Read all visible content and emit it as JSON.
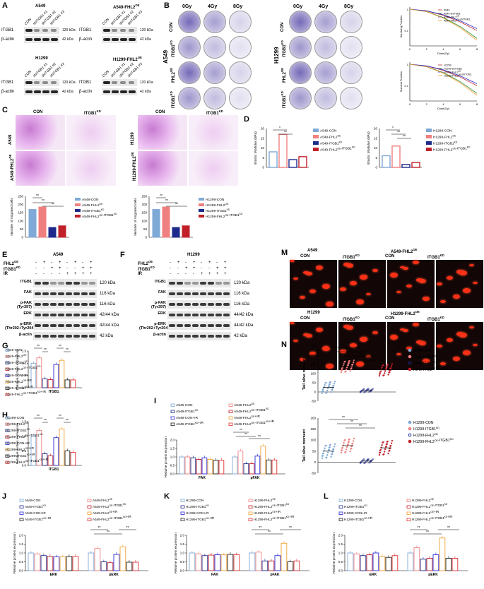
{
  "panels": {
    "A": "A",
    "B": "B",
    "C": "C",
    "D": "D",
    "E": "E",
    "F": "F",
    "G": "G",
    "H": "H",
    "I": "I",
    "J": "J",
    "K": "K",
    "L": "L",
    "M": "M",
    "N": "N"
  },
  "blotsA": [
    {
      "title": "A549",
      "lanes": [
        "CON",
        "shITGB1 #1",
        "shITGB1 #2",
        "shITGB1 #3"
      ],
      "rows": [
        {
          "name": "ITGB1",
          "kda": "120 kDa"
        },
        {
          "name": "β-actin",
          "kda": "42 kDa"
        }
      ]
    },
    {
      "title": "A549-FHL2^OE",
      "lanes": [
        "CON",
        "shITGB1 #1",
        "shITGB1 #2",
        "shITGB1 #3"
      ],
      "rows": [
        {
          "name": "ITGB1",
          "kda": "120 kDa"
        },
        {
          "name": "β-actin",
          "kda": "42 kDa"
        }
      ]
    },
    {
      "title": "H1299",
      "lanes": [
        "CON",
        "shITGB1 #1",
        "shITGB1 #2",
        "shITGB1 #3"
      ],
      "rows": [
        {
          "name": "ITGB1",
          "kda": "120 kDa"
        },
        {
          "name": "β-actin",
          "kda": "42 kDa"
        }
      ]
    },
    {
      "title": "H1299-FHL2^OE",
      "lanes": [
        "CON",
        "shITGB1 #1",
        "shITGB1 #2",
        "shITGB1 #3"
      ],
      "rows": [
        {
          "name": "ITGB1",
          "kda": "120 kDa"
        },
        {
          "name": "β-actin",
          "kda": "42 kDa"
        }
      ]
    }
  ],
  "dishesB": {
    "doses": [
      "0Gy",
      "4Gy",
      "8Gy"
    ],
    "rows": [
      "CON",
      "ITGB1^KD",
      "FHL2^OE",
      "ITGB1^KD"
    ],
    "cellA": "A549",
    "cellH": "H1299"
  },
  "survivalA": {
    "legend": [
      "A549",
      "A549-shITGB1",
      "A549-FHL2^OE",
      "A549-FHL2^OE-shITGB1"
    ],
    "ylabel": "Surviving Fraction",
    "xlabel": "Dose(Gy)",
    "xticks": [
      "0",
      "2",
      "4",
      "6",
      "8"
    ],
    "yticks": [
      "1",
      "0.1"
    ]
  },
  "survivalH": {
    "legend": [
      "H1299",
      "H1299-shITGB1",
      "H1299-FHL2^OE",
      "H1299-FHL2^OE-shITGB1"
    ],
    "ylabel": "Survival Fraction",
    "xlabel": "Dose(Gy)",
    "xticks": [
      "0",
      "2",
      "4",
      "6",
      "8"
    ],
    "yticks": [
      "1",
      "0.1"
    ]
  },
  "micrographsC": {
    "colA": [
      "CON",
      "ITGB1^KD"
    ],
    "rowsA": [
      "A549",
      "A549-FHL2^OE"
    ],
    "colH": [
      "CON",
      "ITGB1^KD"
    ],
    "rowsH": [
      "H1299",
      "H1299-FHL2^OE"
    ]
  },
  "migrationA": {
    "ylabel": "Number of migrated cells",
    "yticks": [
      "0",
      "50",
      "100",
      "150",
      "200",
      "250"
    ],
    "legend": [
      "A549-CON",
      "A549-FHL2^OE",
      "A549-ITGB1^KD",
      "A549-FHL2^OE-ITGB1^KD"
    ],
    "sig": [
      "**",
      "**",
      "**"
    ]
  },
  "migrationH": {
    "ylabel": "Number of migrated cells",
    "yticks": [
      "0",
      "50",
      "100",
      "150",
      "200",
      "250"
    ],
    "legend": [
      "H1299-CON",
      "H1299-FHL2^OE",
      "H1299-ITGB1^KD",
      "H1299-FHL2^OE-ITGB1^KD"
    ],
    "sig": [
      "**",
      "**",
      "**"
    ]
  },
  "elasticA": {
    "ylabel": "Elastic Modulus (kPa)",
    "yticks": [
      "0",
      "5",
      "10",
      "15",
      "20"
    ],
    "legend": [
      "A549-CON",
      "A549-FHL2^OE",
      "A549-ITGB1^KD",
      "A549-FHL2^OE-ITGB1^KD"
    ],
    "sig": [
      "*",
      "**"
    ]
  },
  "elasticH": {
    "ylabel": "Elastic Modulus (kPa)",
    "yticks": [
      "0",
      "5",
      "10",
      "15",
      "20"
    ],
    "legend": [
      "H1299-CON",
      "H1299-FHL2^OE",
      "H1299-ITGB1^KD",
      "H1299-FHL2^OE-ITGB1^KD"
    ],
    "sig": [
      "*",
      "**",
      "**"
    ]
  },
  "blotE": {
    "title": "A549",
    "conds": [
      "FHL2^OE",
      "ITGB1^KD",
      "IR"
    ],
    "signs": [
      [
        "-",
        "+",
        "-",
        "+",
        "-",
        "+",
        "-",
        "+"
      ],
      [
        "-",
        "-",
        "+",
        "+",
        "-",
        "-",
        "+",
        "+"
      ],
      [
        "-",
        "-",
        "-",
        "-",
        "+",
        "+",
        "+",
        "+"
      ]
    ],
    "rows": [
      {
        "name": "ITGB1",
        "kda": "120 kDa"
      },
      {
        "name": "FAK",
        "kda": "116 kDa"
      },
      {
        "name": "p-FAK (Tyr397)",
        "kda": "116 kDa"
      },
      {
        "name": "ERK",
        "kda": "42/44 kDa"
      },
      {
        "name": "p-ERK (Thr202+Tyr204)",
        "kda": "42/44 kDa"
      },
      {
        "name": "β-actin",
        "kda": "42 kDa"
      }
    ]
  },
  "blotF": {
    "title": "H1299",
    "conds": [
      "FHL2^OE",
      "ITGB1^KD",
      "IR"
    ],
    "signs": [
      [
        "-",
        "+",
        "-",
        "+",
        "-",
        "+",
        "-",
        "+"
      ],
      [
        "-",
        "-",
        "+",
        "+",
        "-",
        "-",
        "+",
        "+"
      ],
      [
        "-",
        "-",
        "-",
        "-",
        "+",
        "+",
        "+",
        "+"
      ]
    ],
    "rows": [
      {
        "name": "ITGB1",
        "kda": "120 kDa"
      },
      {
        "name": "FAK",
        "kda": "116 kDa"
      },
      {
        "name": "p-FAK (Tyr397)",
        "kda": "116 kDa"
      },
      {
        "name": "ERK",
        "kda": "44/42 kDa"
      },
      {
        "name": "p-ERK (Thr202+Tyr204)",
        "kda": "44/42 kDa"
      },
      {
        "name": "β-actin",
        "kda": "42 kDa"
      }
    ]
  },
  "legendA8": [
    "A549-CON",
    "A549-FHL2^OE",
    "A549-ITGB1^KD",
    "A549-FHL2^OE-ITGB1^KD",
    "A549-CON+IR",
    "A549-FHL2^OE+IR",
    "A549-ITGB1^KD+IR",
    "A549-FHL2^OE-ITGB1^KD+IR"
  ],
  "legendH8": [
    "H1299-CON",
    "H1299-FHL2^OE",
    "H1299-ITGB1^KD",
    "H1299-FHL2^OE-ITGB1^KD",
    "H1299-CON+IR",
    "H1299-FHL2^OE+IR",
    "H1299-ITGB1^KD+IR",
    "H1299-FHL2^OE-ITGB1^KD+IR"
  ],
  "colors8": [
    "#7fa9d6",
    "#f07f7f",
    "#1d2a8c",
    "#c0202a",
    "#2a2ad6",
    "#f0a030",
    "#222222",
    "#e03030"
  ],
  "barG": {
    "ylabel": "Relative protein expression",
    "groups": [
      "ITGB1"
    ],
    "yticks": [
      "0.0",
      "0.5",
      "1.0",
      "1.5"
    ],
    "ymax": 1.5,
    "values": [
      [
        1.0,
        1.22,
        0.36,
        0.33,
        0.95,
        1.12,
        0.32,
        0.32
      ]
    ]
  },
  "barH": {
    "ylabel": "Relative protein expression",
    "groups": [
      "ITGB1"
    ],
    "yticks": [
      "0.0",
      "0.5",
      "1.0",
      "1.5"
    ],
    "ymax": 1.5,
    "values": [
      [
        1.0,
        1.2,
        0.4,
        0.33,
        0.95,
        1.25,
        0.5,
        0.45
      ]
    ]
  },
  "barI": {
    "ylabel": "Relative protein expression",
    "groups": [
      "FAK",
      "pFAK"
    ],
    "yticks": [
      "0.0",
      "0.5",
      "1.0",
      "1.5",
      "2.0"
    ],
    "ymax": 2.0,
    "values": [
      [
        1.0,
        1.0,
        0.95,
        0.85,
        0.95,
        0.85,
        0.8,
        0.8
      ],
      [
        1.0,
        1.35,
        0.6,
        0.6,
        1.05,
        1.65,
        0.82,
        0.82
      ]
    ]
  },
  "barJ": {
    "ylabel": "Relative protein expression",
    "groups": [
      "ERK",
      "pERK"
    ],
    "yticks": [
      "0.0",
      "0.5",
      "1.0",
      "1.5",
      "2.0"
    ],
    "ymax": 2.0,
    "values": [
      [
        1.0,
        0.95,
        0.85,
        0.8,
        0.78,
        0.78,
        0.8,
        0.8
      ],
      [
        1.0,
        1.25,
        0.5,
        0.45,
        0.92,
        1.35,
        0.48,
        0.48
      ]
    ]
  },
  "barK": {
    "ylabel": "Relative protein expression",
    "groups": [
      "FAK",
      "pFAK"
    ],
    "yticks": [
      "0.0",
      "0.5",
      "1.0",
      "1.5",
      "2.0"
    ],
    "ymax": 2.0,
    "values": [
      [
        1.0,
        0.95,
        0.85,
        0.88,
        0.9,
        0.9,
        0.92,
        0.9
      ],
      [
        1.0,
        1.05,
        0.55,
        0.55,
        0.85,
        1.55,
        0.5,
        0.55
      ]
    ]
  },
  "barL": {
    "ylabel": "Relative protein expression",
    "groups": [
      "ERK",
      "pERK"
    ],
    "yticks": [
      "0.0",
      "0.5",
      "1.0",
      "1.5",
      "2.0"
    ],
    "ymax": 2.0,
    "values": [
      [
        1.0,
        0.95,
        0.85,
        0.9,
        1.0,
        0.8,
        0.75,
        0.85
      ],
      [
        1.0,
        1.3,
        0.65,
        0.7,
        0.9,
        1.85,
        0.7,
        0.7
      ]
    ]
  },
  "cometM": {
    "topHeaders": [
      "A549",
      "A549-FHL2^OE"
    ],
    "botHeaders": [
      "H1299",
      "H1299-FHL2^OE"
    ],
    "sub": [
      "CON",
      "ITGB1^KD",
      "CON",
      "ITGB1^KD"
    ]
  },
  "scatterN": [
    {
      "ylabel": "Tail olive moment",
      "yticks": [
        "-50",
        "0",
        "50",
        "100",
        "150",
        "200",
        "250"
      ],
      "legend": [
        "A549-CON",
        "A549-ITGB1^KD",
        "A549-FHL2^OE",
        "A549-FHL2^OE-ITGB1^KD"
      ],
      "colors": [
        "#7fa9d6",
        "#f07f7f",
        "#1d2a8c",
        "#c0202a"
      ],
      "means": [
        25,
        140,
        8,
        120
      ],
      "sig": [
        "*",
        "**",
        "**",
        "**"
      ]
    },
    {
      "ylabel": "Tail olive moment",
      "yticks": [
        "-50",
        "0",
        "50",
        "100",
        "150",
        "200"
      ],
      "legend": [
        "H1299-CON",
        "H1299-ITGB1^KD",
        "H1299-FHL2^OE",
        "H1299-FHL2^OE-ITGB1^KD"
      ],
      "colors": [
        "#7fa9d6",
        "#f07f7f",
        "#1d2a8c",
        "#c0202a"
      ],
      "means": [
        50,
        75,
        5,
        65
      ],
      "sig": [
        "**",
        "**",
        "**"
      ]
    }
  ]
}
